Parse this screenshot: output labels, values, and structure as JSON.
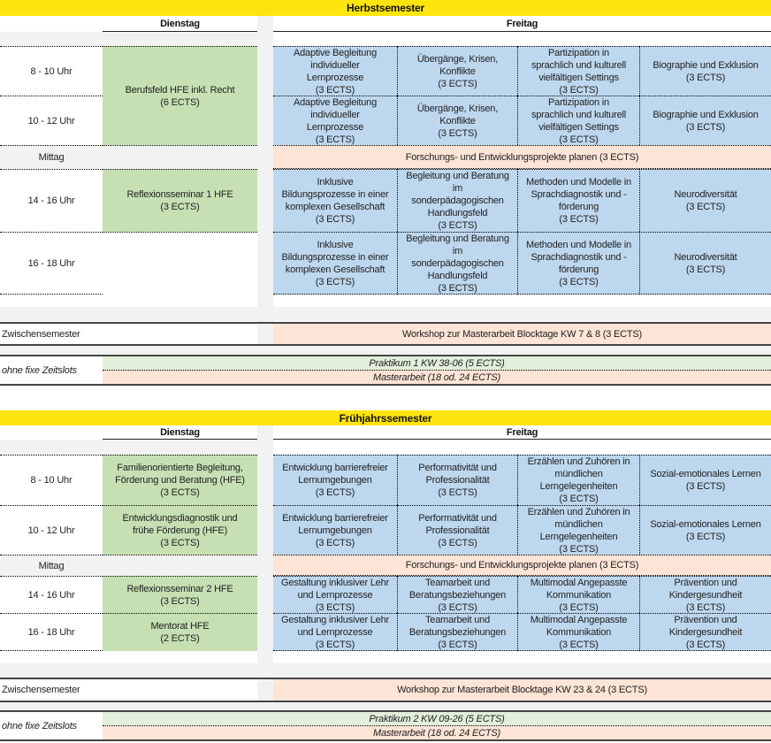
{
  "semesters": [
    {
      "title": "Herbstsemester",
      "day_tuesday": "Dienstag",
      "day_friday": "Freitag",
      "slots": [
        {
          "time": "8 - 10 Uhr",
          "tuesday": {
            "text": "Berufsfeld HFE inkl. Recht\n(6 ECTS)",
            "rows": 2
          },
          "friday": [
            "Adaptive Begleitung\nindividueller\nLernprozesse\n(3 ECTS)",
            "Übergänge, Krisen,\nKonflikte\n(3 ECTS)",
            "Partizipation in\nsprachlich und kulturell\nvielfältigen Settings\n(3 ECTS)",
            "Biographie und Exklusion\n(3 ECTS)"
          ]
        },
        {
          "time": "10 - 12 Uhr",
          "tuesday": null,
          "friday": [
            "Adaptive Begleitung\nindividueller\nLernprozesse\n(3 ECTS)",
            "Übergänge, Krisen,\nKonflikte\n(3 ECTS)",
            "Partizipation in\nsprachlich und kulturell\nvielfältigen Settings\n(3 ECTS)",
            "Biographie und Exklusion\n(3 ECTS)"
          ]
        },
        {
          "time": "Mittag",
          "lunch": true,
          "friday_all": "Forschungs- und Entwicklungsprojekte planen (3 ECTS)"
        },
        {
          "time": "14 - 16 Uhr",
          "tuesday": {
            "text": "Reflexionsseminar 1 HFE\n(3 ECTS)",
            "rows": 1
          },
          "friday": [
            "Inklusive\nBildungsprozesse in einer\nkomplexen Gesellschaft\n(3 ECTS)",
            "Begleitung und Beratung\nim\nsonderpädagogischen\nHandlungsfeld\n(3 ECTS)",
            "Methoden und Modelle in\nSprachdiagnostik und -\nförderung\n(3 ECTS)",
            "Neurodiversität\n(3 ECTS)"
          ]
        },
        {
          "time": "16 - 18 Uhr",
          "tuesday": {
            "text": "",
            "rows": 1,
            "empty": true
          },
          "friday": [
            "Inklusive\nBildungsprozesse in einer\nkomplexen Gesellschaft\n(3 ECTS)",
            "Begleitung und Beratung\nim\nsonderpädagogischen\nHandlungsfeld\n(3 ECTS)",
            "Methoden und Modelle in\nSprachdiagnostik und -\nförderung\n(3 ECTS)",
            "Neurodiversität\n(3 ECTS)"
          ]
        }
      ],
      "zwischen_label": "Zwischensemester",
      "zwischen_course": "Workshop zur Masterarbeit Blocktage KW 7 & 8 (3 ECTS)",
      "ohne_label": "ohne fixe Zeitslots",
      "praktikum": "Praktikum 1 KW 38-06 (5 ECTS)",
      "masterarbeit": "Masterarbeit (18 od. 24 ECTS)"
    },
    {
      "title": "Frühjahrssemester",
      "day_tuesday": "Dienstag",
      "day_friday": "Freitag",
      "slots": [
        {
          "time": "8 - 10 Uhr",
          "tuesday": {
            "text": "Familienorientierte Begleitung,\nFörderung und Beratung (HFE)\n(3 ECTS)",
            "rows": 1
          },
          "friday": [
            "Entwicklung barrierefreier\nLernumgebungen\n(3 ECTS)",
            "Performativität und\nProfessionalität\n(3 ECTS)",
            "Erzählen und Zuhören in\nmündlichen\nLerngelegenheiten\n(3 ECTS)",
            "Sozial-emotionales Lernen\n(3 ECTS)"
          ]
        },
        {
          "time": "10 - 12 Uhr",
          "tuesday": {
            "text": "Entwicklungsdiagnostik und\nfrühe Förderung (HFE)\n(3 ECTS)",
            "rows": 1
          },
          "friday": [
            "Entwicklung barrierefreier\nLernumgebungen\n(3 ECTS)",
            "Performativität und\nProfessionalität\n(3 ECTS)",
            "Erzählen und Zuhören in\nmündlichen\nLerngelegenheiten\n(3 ECTS)",
            "Sozial-emotionales Lernen\n(3 ECTS)"
          ]
        },
        {
          "time": "Mittag",
          "lunch": true,
          "friday_all": "Forschungs- und Entwicklungsprojekte planen (3 ECTS)"
        },
        {
          "time": "14 - 16 Uhr",
          "tuesday": {
            "text": "Reflexionsseminar 2 HFE\n(3 ECTS)",
            "rows": 1
          },
          "friday": [
            "Gestaltung inklusiver Lehr\nund Lernprozesse\n(3 ECTS)",
            "Teamarbeit und\nBeratungsbeziehungen\n(3 ECTS)",
            "Multimodal Angepasste\nKommunikation\n(3 ECTS)",
            "Prävention und\nKindergesundheit\n(3 ECTS)"
          ]
        },
        {
          "time": "16 - 18 Uhr",
          "tuesday": {
            "text": "Mentorat HFE\n(2 ECTS)",
            "rows": 1
          },
          "friday": [
            "Gestaltung inklusiver Lehr\nund Lernprozesse\n(3 ECTS)",
            "Teamarbeit und\nBeratungsbeziehungen\n(3 ECTS)",
            "Multimodal Angepasste\nKommunikation\n(3 ECTS)",
            "Prävention und\nKindergesundheit\n(3 ECTS)"
          ]
        }
      ],
      "zwischen_label": "Zwischensemester",
      "zwischen_course": "Workshop zur Masterarbeit Blocktage KW 23 & 24 (3 ECTS)",
      "ohne_label": "ohne fixe Zeitslots",
      "praktikum": "Praktikum 2 KW 09-26 (5 ECTS)",
      "masterarbeit": "Masterarbeit (18 od. 24 ECTS)"
    }
  ],
  "colors": {
    "header": "#ffe50d",
    "tuesday_course": "#c6e0b4",
    "friday_course": "#bdd7ee",
    "special": "#fce4d6",
    "praktikum": "#e2efda",
    "filler": "#f2f2f2"
  }
}
